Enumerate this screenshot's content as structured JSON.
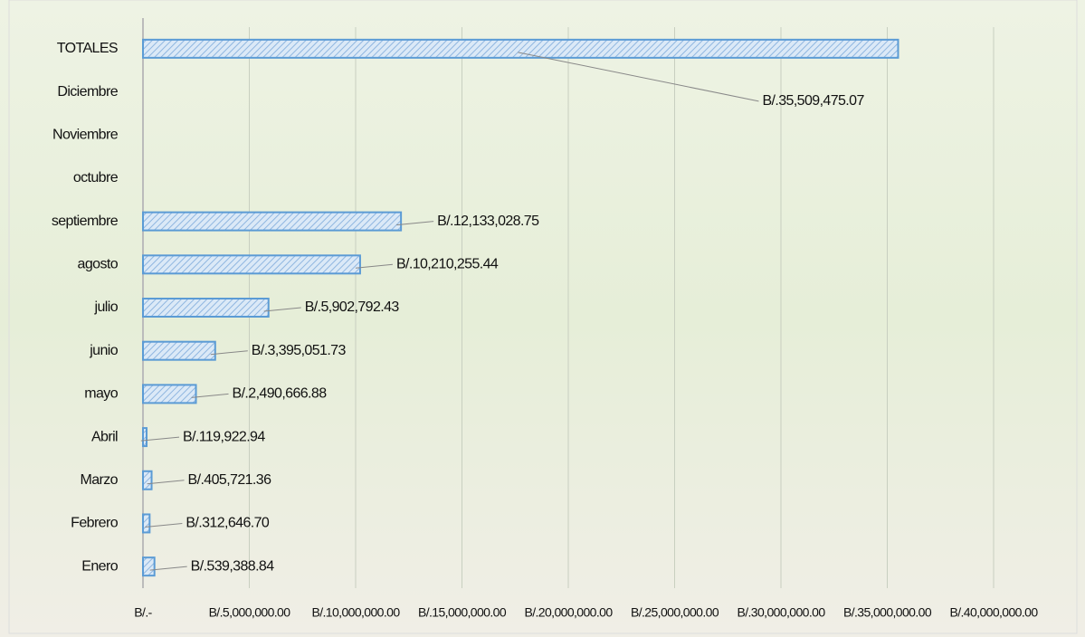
{
  "chart_data": {
    "type": "bar",
    "orientation": "horizontal",
    "categories": [
      "Enero",
      "Febrero",
      "Marzo",
      "Abril",
      "mayo",
      "junio",
      "julio",
      "agosto",
      "septiembre",
      "octubre",
      "Noviembre",
      "Diciembre",
      "TOTALES"
    ],
    "values": [
      539388.84,
      312646.7,
      405721.36,
      119922.94,
      2490666.88,
      3395051.73,
      5902792.43,
      10210255.44,
      12133028.75,
      null,
      null,
      null,
      35509475.07
    ],
    "value_labels": [
      "B/.539,388.84",
      "B/.312,646.70",
      "B/.405,721.36",
      "B/.119,922.94",
      "B/.2,490,666.88",
      "B/.3,395,051.73",
      "B/.5,902,792.43",
      "B/.10,210,255.44",
      "B/.12,133,028.75",
      null,
      null,
      null,
      "B/.35,509,475.07"
    ],
    "color": "#5b9bd5",
    "xlim": [
      0,
      40000000
    ],
    "xticks": [
      {
        "value": 0,
        "label": "B/.-"
      },
      {
        "value": 5000000,
        "label": "B/.5,000,000.00"
      },
      {
        "value": 10000000,
        "label": "B/.10,000,000.00"
      },
      {
        "value": 15000000,
        "label": "B/.15,000,000.00"
      },
      {
        "value": 20000000,
        "label": "B/.20,000,000.00"
      },
      {
        "value": 25000000,
        "label": "B/.25,000,000.00"
      },
      {
        "value": 30000000,
        "label": "B/.30,000,000.00"
      },
      {
        "value": 35000000,
        "label": "B/.35,000,000.00"
      },
      {
        "value": 40000000,
        "label": "B/.40,000,000.00"
      }
    ],
    "grid": true
  }
}
